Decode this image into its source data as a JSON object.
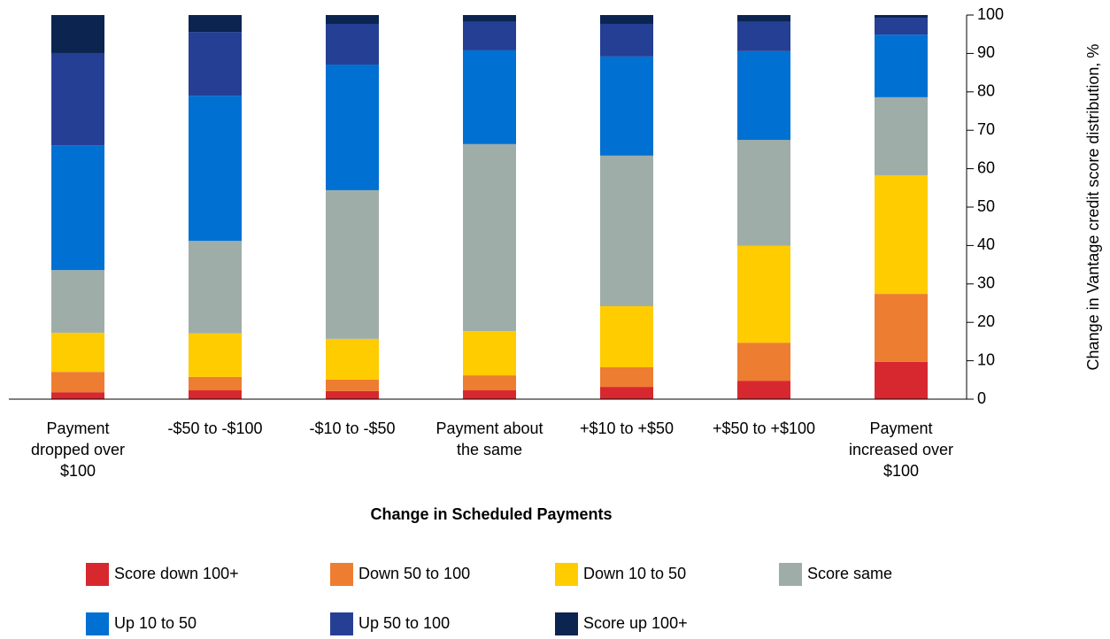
{
  "chart_data": {
    "type": "stacked_bar",
    "x_label": "Change in Scheduled Payments",
    "y_label": "Change in Vantage credit score distribution, %",
    "categories": [
      "Payment dropped over $100",
      "-$50 to -$100",
      "-$10 to -$50",
      "Payment about the same",
      "+$10 to +$50",
      "+$50 to +$100",
      "Payment increased over $100"
    ],
    "series": [
      {
        "name": "Score down 100+",
        "color": "#d7282f",
        "values": [
          1.8,
          2.3,
          2.1,
          2.3,
          3.2,
          4.8,
          9.7
        ]
      },
      {
        "name": "Down 50 to 100",
        "color": "#ed7d31",
        "values": [
          5.3,
          3.5,
          3.0,
          3.9,
          5.1,
          9.9,
          17.7
        ]
      },
      {
        "name": "Down 10 to 50",
        "color": "#ffcc00",
        "values": [
          10.2,
          11.3,
          10.6,
          11.5,
          15.9,
          25.2,
          30.9
        ]
      },
      {
        "name": "Score same",
        "color": "#9fada9",
        "values": [
          16.3,
          24.1,
          38.7,
          48.7,
          39.2,
          27.6,
          20.3
        ]
      },
      {
        "name": "Up 10 to 50",
        "color": "#0070d2",
        "values": [
          32.5,
          37.8,
          32.7,
          24.4,
          25.8,
          23.1,
          16.3
        ]
      },
      {
        "name": "Up 50 to 100",
        "color": "#253f95",
        "values": [
          24.0,
          16.6,
          10.6,
          7.4,
          8.5,
          7.6,
          4.4
        ]
      },
      {
        "name": "Score up 100+",
        "color": "#0b2450",
        "values": [
          9.9,
          4.4,
          2.3,
          1.8,
          2.3,
          1.8,
          0.7
        ]
      }
    ],
    "ylim": [
      0,
      100
    ],
    "yticks": [
      0,
      10,
      20,
      30,
      40,
      50,
      60,
      70,
      80,
      90,
      100
    ],
    "y_axis_side": "right",
    "legend": "bottom"
  }
}
